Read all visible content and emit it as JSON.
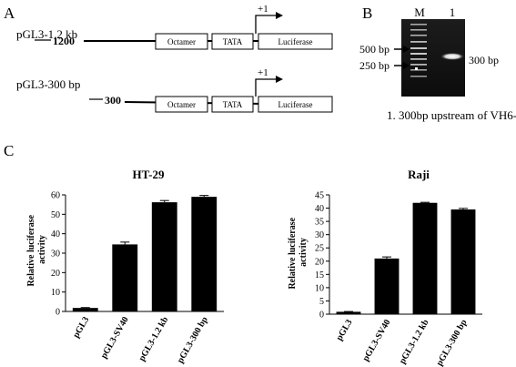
{
  "panels": {
    "a": {
      "letter": "A",
      "construct_long": {
        "name": "pGL3-1.2 kb",
        "position_label": "1200",
        "start_site": "+1",
        "boxes": [
          "Octamer",
          "TATA",
          "Luciferase"
        ]
      },
      "construct_short": {
        "name": "pGL3-300 bp",
        "position_label": "300",
        "start_site": "+1",
        "boxes": [
          "Octamer",
          "TATA",
          "Luciferase"
        ]
      }
    },
    "b": {
      "letter": "B",
      "lane_labels": [
        "M",
        "1"
      ],
      "markers": [
        "500 bp",
        "250 bp"
      ],
      "band_label": "300 bp",
      "caption": "1.  300bp upstream of VH6-1"
    },
    "c": {
      "letter": "C"
    }
  },
  "chart_data": [
    {
      "type": "bar",
      "title": "HT-29",
      "ylabel": "Relative luciferase activity",
      "categories": [
        "pGL3",
        "pGL3-SV40",
        "pGL3-1.2 kb",
        "pGL3-300 bp"
      ],
      "values": [
        1.8,
        34.5,
        56.2,
        59.0
      ],
      "errors": [
        0.2,
        1.2,
        0.9,
        0.7
      ],
      "ylim": [
        0,
        60
      ],
      "yticks": [
        0,
        10,
        20,
        30,
        40,
        50,
        60
      ],
      "color": "#000000"
    },
    {
      "type": "bar",
      "title": "Raji",
      "ylabel": "Relative luciferase activity",
      "categories": [
        "pGL3",
        "pGL3-SV40",
        "pGL3-1.2 kb",
        "pGL3-300 bp"
      ],
      "values": [
        0.9,
        21.0,
        42.0,
        39.5
      ],
      "errors": [
        0.1,
        0.6,
        0.2,
        0.4
      ],
      "ylim": [
        0,
        45
      ],
      "yticks": [
        0,
        5,
        10,
        15,
        20,
        25,
        30,
        35,
        40,
        45
      ],
      "color": "#000000"
    }
  ]
}
